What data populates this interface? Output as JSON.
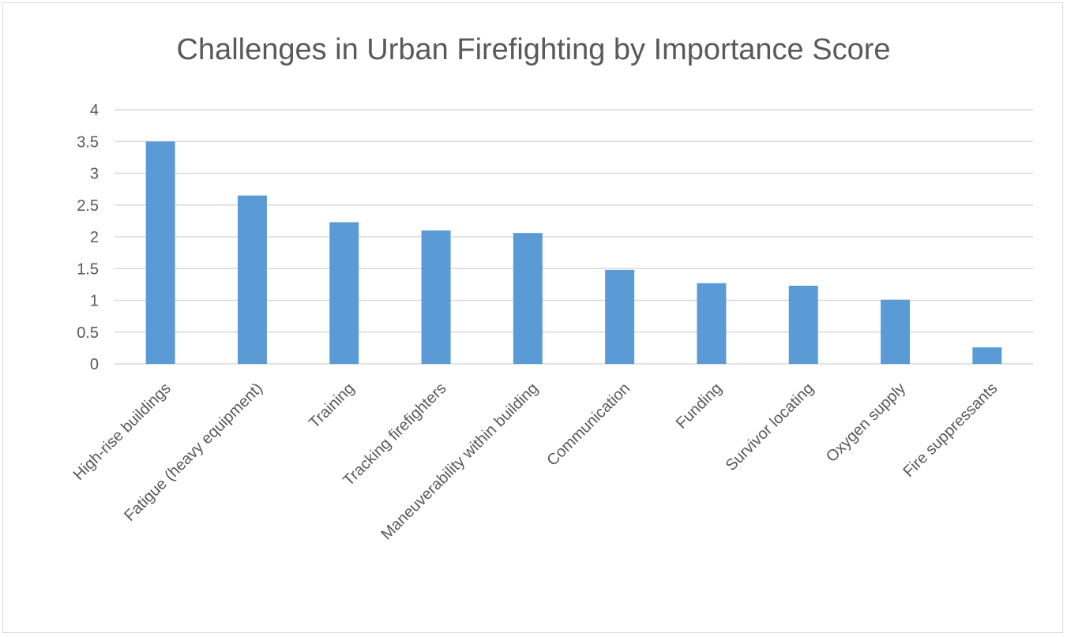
{
  "chart_data": {
    "type": "bar",
    "title": "Challenges in Urban Firefighting by Importance Score",
    "xlabel": "",
    "ylabel": "",
    "categories": [
      "High-rise buildings",
      "Fatigue (heavy equipment)",
      "Training",
      "Tracking firefighters",
      "Maneuverability within building",
      "Communication",
      "Funding",
      "Survivor locating",
      "Oxygen supply",
      "Fire suppressants"
    ],
    "values": [
      3.5,
      2.65,
      2.23,
      2.1,
      2.06,
      1.48,
      1.27,
      1.23,
      1.01,
      0.26
    ],
    "ylim": [
      0,
      4
    ],
    "yticks": [
      "0",
      "0.5",
      "1",
      "1.5",
      "2",
      "2.5",
      "3",
      "3.5",
      "4"
    ],
    "grid": true,
    "legend": "none",
    "bar_color": "#5b9bd5",
    "grid_color": "#d9d9d9",
    "text_color": "#595959"
  }
}
